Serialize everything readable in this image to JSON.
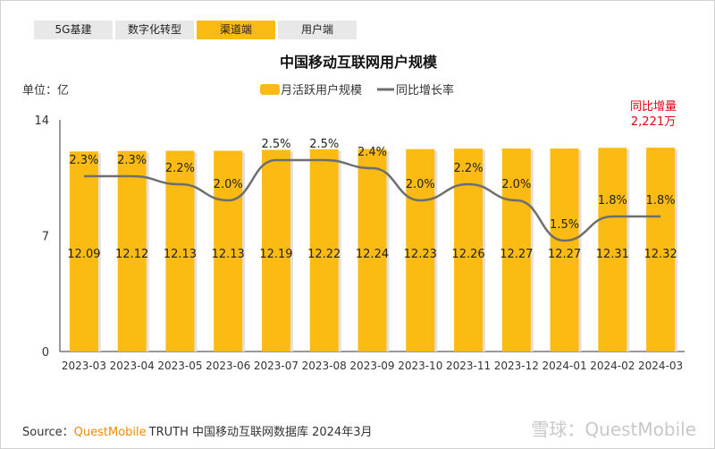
{
  "tabs": [
    {
      "label": "5G基建",
      "active": false
    },
    {
      "label": "数字化转型",
      "active": false
    },
    {
      "label": "渠道端",
      "active": true
    },
    {
      "label": "用户端",
      "active": false
    }
  ],
  "unit_label": "单位：亿",
  "annotation": {
    "line1": "同比增量",
    "line2": "2,221万",
    "color": "#e60012"
  },
  "source": {
    "prefix": "Source：",
    "brand": "QuestMobile",
    "rest": "TRUTH 中国移动互联网数据库 2024年3月",
    "brand_color": "#f08c00"
  },
  "watermark": "雪球：QuestMobile",
  "chart_data": {
    "type": "bar",
    "title": "中国移动互联网用户规模",
    "categories": [
      "2023-03",
      "2023-04",
      "2023-05",
      "2023-06",
      "2023-07",
      "2023-08",
      "2023-09",
      "2023-10",
      "2023-11",
      "2023-12",
      "2024-01",
      "2024-02",
      "2024-03"
    ],
    "series": [
      {
        "name": "月活跃用户规模",
        "type": "bar",
        "color": "#fbbb13",
        "values": [
          12.09,
          12.12,
          12.13,
          12.13,
          12.19,
          12.22,
          12.24,
          12.23,
          12.26,
          12.27,
          12.27,
          12.31,
          12.32
        ]
      },
      {
        "name": "同比增长率",
        "type": "line",
        "color": "#6e6e6e",
        "values": [
          2.3,
          2.3,
          2.2,
          2.0,
          2.5,
          2.5,
          2.4,
          2.0,
          2.2,
          2.0,
          1.5,
          1.8,
          1.8
        ],
        "labels": [
          "2.3%",
          "2.3%",
          "2.2%",
          "2.0%",
          "2.5%",
          "2.5%",
          "2.4%",
          "2.0%",
          "2.2%",
          "2.0%",
          "1.5%",
          "1.8%",
          "1.8%"
        ]
      }
    ],
    "yticks": [
      "0",
      "7",
      "14"
    ],
    "ylim": [
      0,
      14
    ],
    "legend": "top-center",
    "grid": false
  }
}
